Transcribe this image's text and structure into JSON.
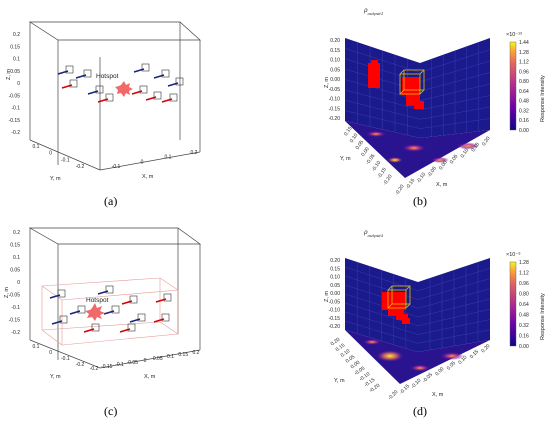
{
  "captions": {
    "a": "(a)",
    "b": "(b)",
    "c": "(c)",
    "d": "(d)"
  },
  "hotspot_label": "Hotspot",
  "colors": {
    "sensor_blue": "#1a237e",
    "sensor_red": "#d50000",
    "hotspot": "#f06a6a",
    "box_edge": "#444444",
    "domain_red": "#e89a9a",
    "wall": "#1a1a8c",
    "voxel_red": "#ff0000",
    "voxel_yellow": "#e0c000"
  },
  "chart_data": [
    {
      "id": "a",
      "type": "3d-scatter",
      "zlabel": "Z, m",
      "xlabel": "X, m",
      "ylabel": "Y, m",
      "z_ticks": [
        "0.2",
        "0.15",
        "0.1",
        "0.05",
        "0",
        "-0.05",
        "-0.1",
        "-0.15",
        "-0.2"
      ],
      "x_ticks": [
        "-0.1",
        "0",
        "0.1",
        "0.2"
      ],
      "y_ticks": [
        "0.1",
        "0",
        "-0.1",
        "-0.2"
      ],
      "annotation": "Hotspot"
    },
    {
      "id": "b",
      "type": "heatmap-3d",
      "title": "ρoutput1",
      "title_main": "ρ",
      "title_sub": "output1",
      "zlabel": "Z, m",
      "xlabel": "X, m",
      "ylabel": "Y, m",
      "z_ticks": [
        "0.20",
        "0.15",
        "0.10",
        "0.05",
        "0.00",
        "-0.05",
        "-0.10",
        "-0.15",
        "-0.20"
      ],
      "x_ticks": [
        "-0.20",
        "-0.15",
        "-0.10",
        "-0.05",
        "0.00",
        "0.05",
        "0.10",
        "0.15",
        "0.20"
      ],
      "y_ticks": [
        "0.15",
        "0.10",
        "0.05",
        "0.00",
        "-0.05",
        "-0.10",
        "-0.15",
        "-0.20"
      ],
      "colorbar": {
        "label": "Response Intensity",
        "multiplier": "×10⁻¹³",
        "ticks": [
          "1.44",
          "1.28",
          "1.12",
          "0.96",
          "0.80",
          "0.64",
          "0.48",
          "0.32",
          "0.16",
          "0.00"
        ],
        "min": 0.0,
        "max": 1.44
      }
    },
    {
      "id": "c",
      "type": "3d-scatter",
      "zlabel": "Z, m",
      "xlabel": "X, m",
      "ylabel": "Y, m",
      "z_ticks": [
        "0.2",
        "0.15",
        "0.1",
        "0.05",
        "0",
        "-0.05",
        "-0.1",
        "-0.15",
        "-0.2"
      ],
      "x_ticks": [
        "-0.2",
        "-0.15",
        "-0.1",
        "-0.05",
        "0",
        "0.05",
        "0.1",
        "0.15",
        "0.2"
      ],
      "y_ticks": [
        "0.1",
        "0",
        "-0.1",
        "-0.2"
      ],
      "annotation": "Hotspot"
    },
    {
      "id": "d",
      "type": "heatmap-3d",
      "title": "ρoutput3",
      "title_main": "ρ",
      "title_sub": "output3",
      "zlabel": "Z, m",
      "xlabel": "X, m",
      "ylabel": "Y, m",
      "z_ticks": [
        "0.20",
        "0.15",
        "0.10",
        "0.05",
        "0.00",
        "-0.05",
        "-0.10",
        "-0.15",
        "-0.20"
      ],
      "x_ticks": [
        "-0.20",
        "-0.15",
        "-0.10",
        "-0.05",
        "0.00",
        "0.05",
        "0.10",
        "0.15",
        "0.20"
      ],
      "y_ticks": [
        "0.20",
        "0.15",
        "0.10",
        "0.05",
        "0.00",
        "-0.05",
        "-0.10",
        "-0.15",
        "-0.20"
      ],
      "colorbar": {
        "label": "Response Intensity",
        "multiplier": "×10⁻⁹",
        "ticks": [
          "1.28",
          "1.12",
          "0.96",
          "0.80",
          "0.64",
          "0.48",
          "0.32",
          "0.16",
          "0.00"
        ],
        "min": 0.0,
        "max": 1.28
      }
    }
  ]
}
